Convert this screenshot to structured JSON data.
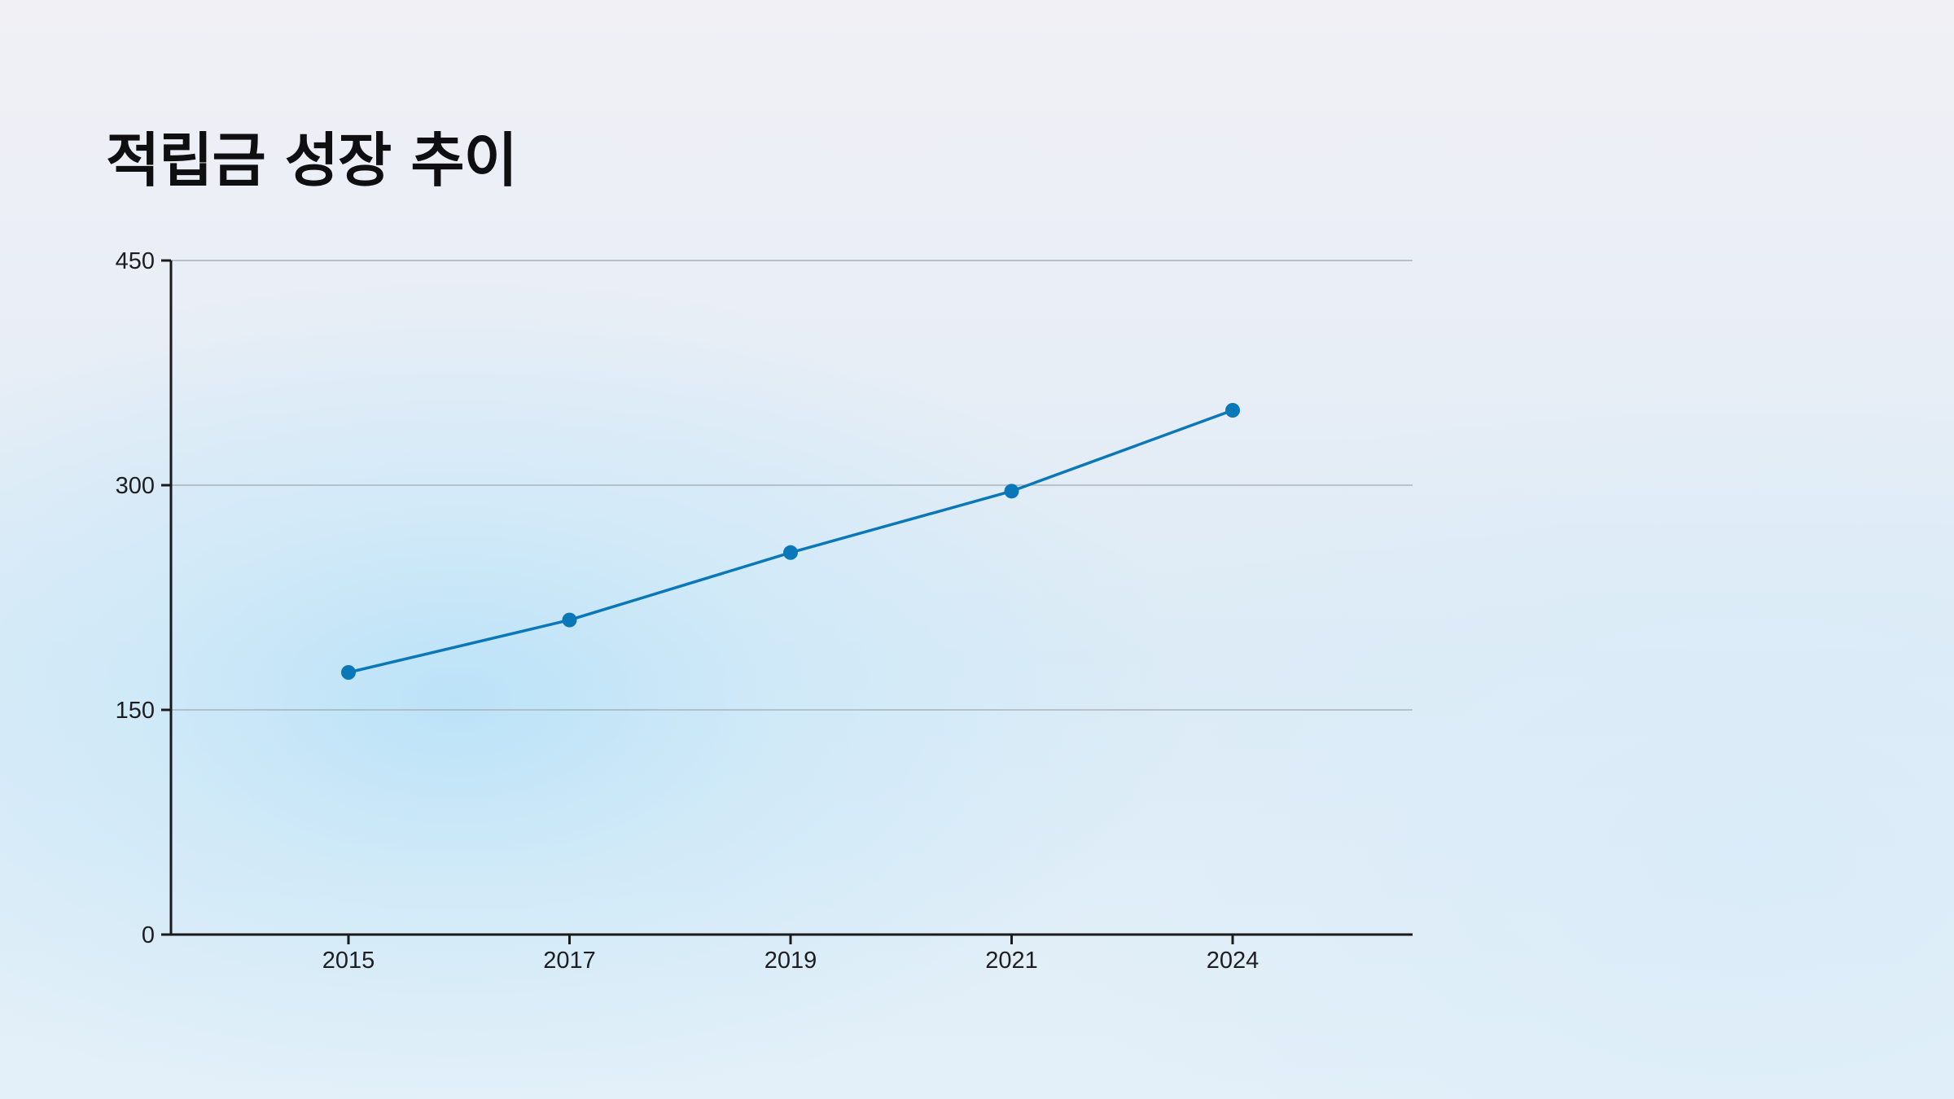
{
  "title": "적립금 성장 추이",
  "colors": {
    "line": "#0a78b8",
    "marker": "#0a78b8",
    "axis": "#1a1a1a",
    "grid": "#a9b3bc",
    "title": "#0f0f12"
  },
  "chart_data": {
    "type": "line",
    "title": "적립금 성장 추이",
    "xlabel": "",
    "ylabel": "",
    "x": [
      "2015",
      "2017",
      "2019",
      "2021",
      "2024"
    ],
    "series": [
      {
        "values": [
          175,
          210,
          255,
          296,
          350
        ]
      }
    ],
    "ylim": [
      0,
      450
    ],
    "yticks": [
      0,
      150,
      300,
      450
    ],
    "xticklabels": [
      "2015",
      "2017",
      "2019",
      "2021",
      "2024"
    ],
    "grid": "horizontal",
    "legend": "none",
    "markers": true
  }
}
